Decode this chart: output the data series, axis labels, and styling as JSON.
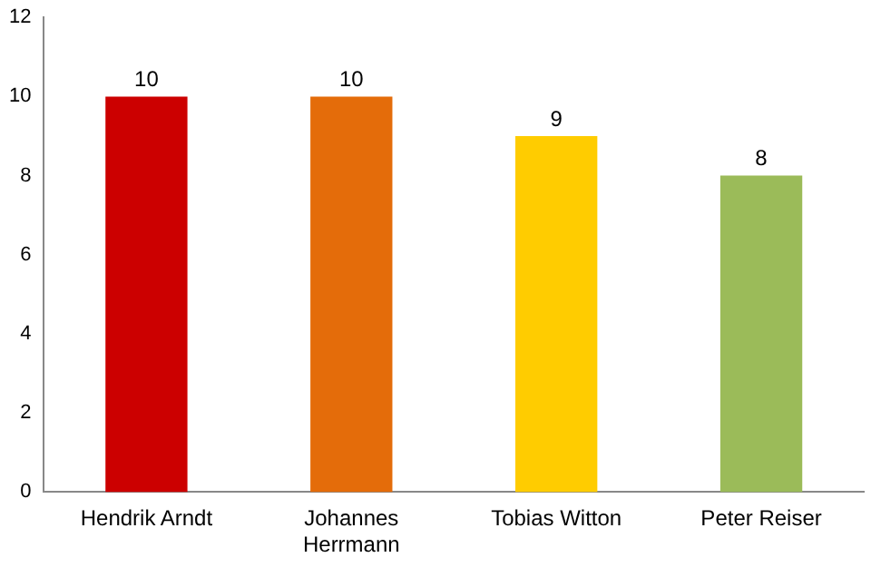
{
  "chart_data": {
    "type": "bar",
    "categories": [
      "Hendrik Arndt",
      "Johannes Herrmann",
      "Tobias Witton",
      "Peter Reiser"
    ],
    "values": [
      10,
      10,
      9,
      8
    ],
    "colors": [
      "#cc0000",
      "#e46c0a",
      "#ffcc00",
      "#9bbb59"
    ],
    "ylim": [
      0,
      12
    ],
    "yticks": [
      0,
      2,
      4,
      6,
      8,
      10,
      12
    ],
    "grid": false,
    "legend": false,
    "data_labels": true
  }
}
